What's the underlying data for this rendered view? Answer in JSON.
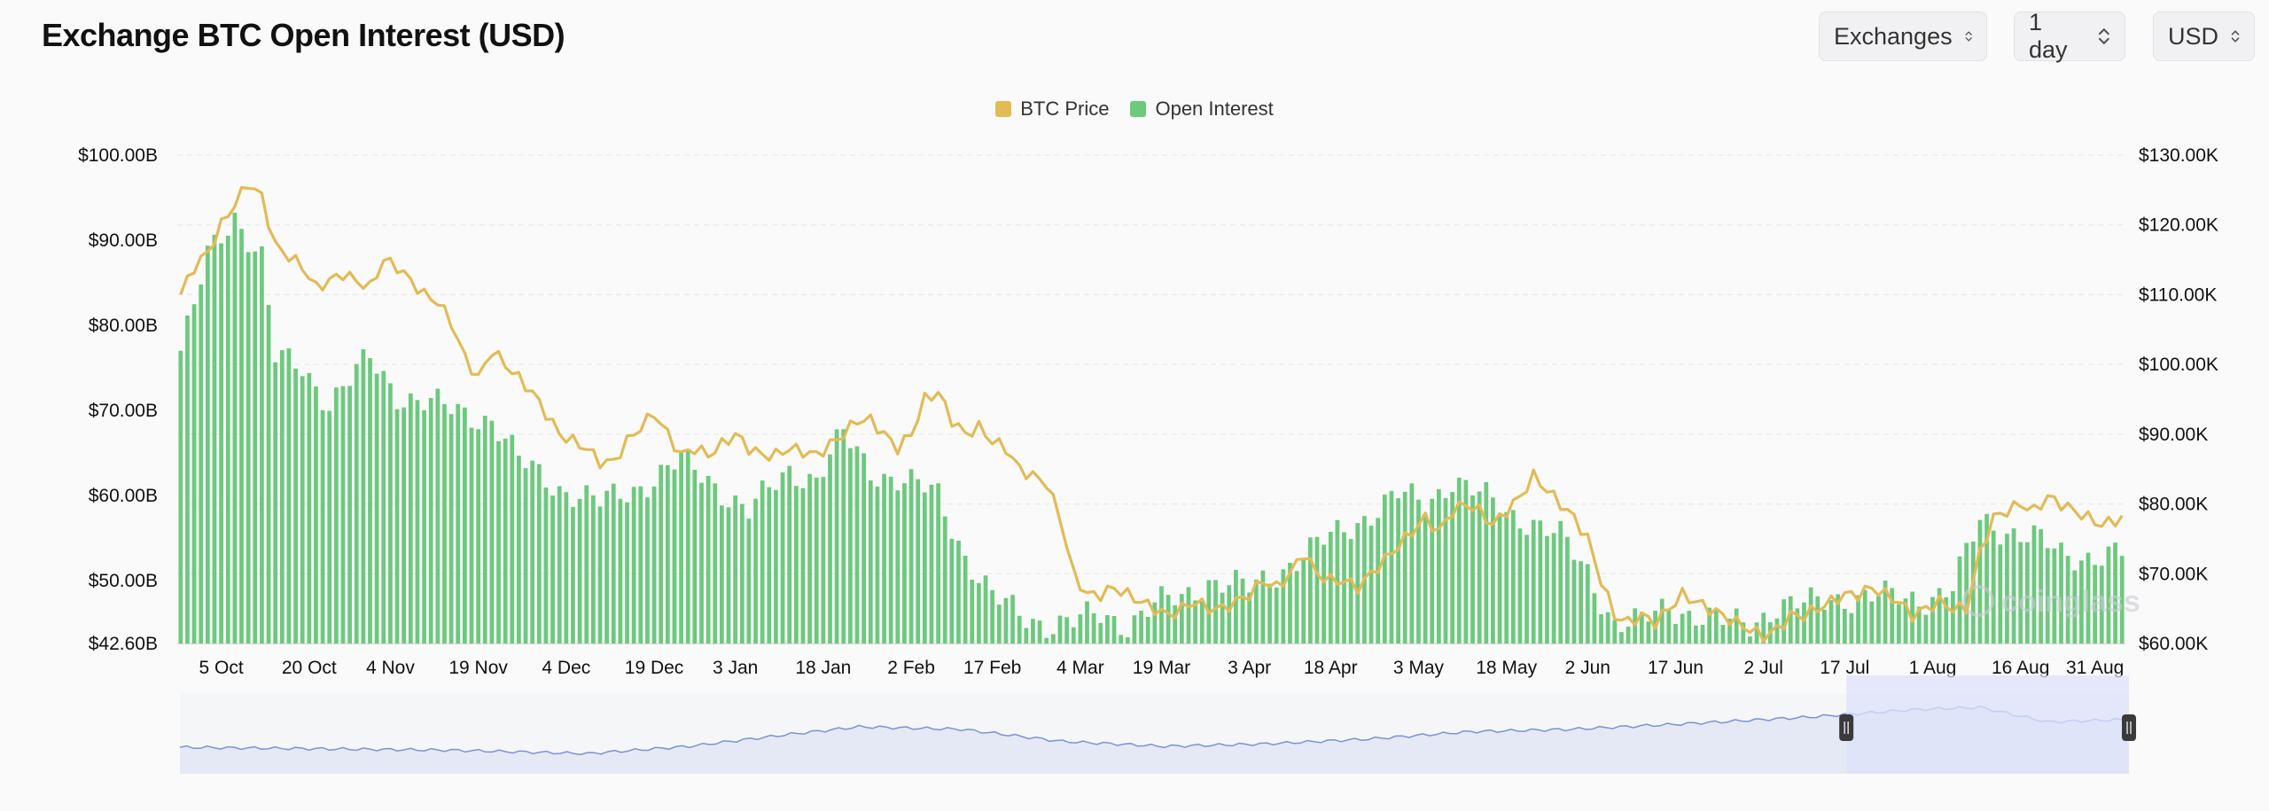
{
  "header": {
    "title": "Exchange BTC Open Interest (USD)",
    "exchanges_label": "Exchanges",
    "interval_label": "1 day",
    "currency_label": "USD"
  },
  "colors": {
    "price": "#e2bb57",
    "open_interest": "#6cc97d",
    "navigator_fill": "#e4e9f5",
    "navigator_line": "#7a93d6",
    "navigator_selection": "#dde1fa",
    "watermark": "#c9cdd6"
  },
  "watermark": {
    "text": "coinglass"
  },
  "chart_data": {
    "type": "bar",
    "title": "Exchange BTC Open Interest (USD)",
    "legend": [
      "BTC Price",
      "Open Interest"
    ],
    "legend_position": "top-center",
    "grid": true,
    "x_tick_labels": [
      "5 Oct",
      "20 Oct",
      "4 Nov",
      "19 Nov",
      "4 Dec",
      "19 Dec",
      "3 Jan",
      "18 Jan",
      "2 Feb",
      "17 Feb",
      "4 Mar",
      "19 Mar",
      "3 Apr",
      "18 Apr",
      "3 May",
      "18 May",
      "2 Jun",
      "17 Jun",
      "2 Jul",
      "17 Jul",
      "1 Aug",
      "16 Aug",
      "31 Aug"
    ],
    "y_left": {
      "label": "",
      "min": 42.6,
      "max": 100,
      "unit": "B USD",
      "tick_labels": [
        "$100.00B",
        "$90.00B",
        "$80.00B",
        "$70.00B",
        "$60.00B",
        "$50.00B",
        "$42.60B"
      ],
      "tick_values": [
        100,
        90,
        80,
        70,
        60,
        50,
        42.6
      ]
    },
    "y_right": {
      "label": "",
      "min": 60,
      "max": 130,
      "unit": "K USD",
      "tick_labels": [
        "$130.00K",
        "$120.00K",
        "$110.00K",
        "$100.00K",
        "$90.00K",
        "$80.00K",
        "$70.00K",
        "$60.00K"
      ],
      "tick_values": [
        130,
        120,
        110,
        100,
        90,
        80,
        70,
        60
      ]
    },
    "series": [
      {
        "name": "Open Interest",
        "axis": "left",
        "type": "bar",
        "keypoints": [
          [
            0,
            77
          ],
          [
            2,
            82
          ],
          [
            4,
            88
          ],
          [
            8,
            93
          ],
          [
            12,
            88
          ],
          [
            14,
            76
          ],
          [
            18,
            75
          ],
          [
            22,
            71
          ],
          [
            28,
            76
          ],
          [
            32,
            72
          ],
          [
            40,
            70
          ],
          [
            46,
            69
          ],
          [
            50,
            64
          ],
          [
            56,
            61
          ],
          [
            62,
            59
          ],
          [
            70,
            62
          ],
          [
            74,
            64
          ],
          [
            78,
            62
          ],
          [
            84,
            58
          ],
          [
            90,
            63
          ],
          [
            94,
            62
          ],
          [
            98,
            67
          ],
          [
            102,
            63
          ],
          [
            106,
            62
          ],
          [
            112,
            60
          ],
          [
            116,
            53
          ],
          [
            120,
            48
          ],
          [
            124,
            46
          ],
          [
            128,
            45
          ],
          [
            132,
            45
          ],
          [
            136,
            46
          ],
          [
            140,
            45
          ],
          [
            144,
            47
          ],
          [
            148,
            48
          ],
          [
            152,
            50
          ],
          [
            158,
            49
          ],
          [
            164,
            52
          ],
          [
            170,
            55
          ],
          [
            176,
            58
          ],
          [
            180,
            60
          ],
          [
            184,
            59
          ],
          [
            188,
            62
          ],
          [
            192,
            60
          ],
          [
            196,
            58
          ],
          [
            200,
            57
          ],
          [
            204,
            55
          ],
          [
            208,
            51
          ],
          [
            212,
            45
          ],
          [
            216,
            45
          ],
          [
            220,
            47
          ],
          [
            224,
            46
          ],
          [
            228,
            45
          ],
          [
            232,
            45
          ],
          [
            236,
            47
          ],
          [
            240,
            47
          ],
          [
            244,
            48
          ],
          [
            248,
            48
          ],
          [
            254,
            48
          ],
          [
            258,
            48
          ],
          [
            262,
            49
          ],
          [
            266,
            57
          ],
          [
            270,
            56
          ],
          [
            274,
            55
          ],
          [
            278,
            53
          ],
          [
            282,
            53
          ],
          [
            287,
            53
          ]
        ]
      },
      {
        "name": "BTC Price",
        "axis": "right",
        "type": "line",
        "keypoints": [
          [
            0,
            110
          ],
          [
            2,
            114
          ],
          [
            4,
            116
          ],
          [
            6,
            120
          ],
          [
            8,
            123
          ],
          [
            10,
            126
          ],
          [
            12,
            124
          ],
          [
            14,
            117
          ],
          [
            18,
            114
          ],
          [
            20,
            111
          ],
          [
            24,
            113
          ],
          [
            26,
            112
          ],
          [
            28,
            111
          ],
          [
            30,
            115
          ],
          [
            32,
            114
          ],
          [
            34,
            112
          ],
          [
            36,
            110
          ],
          [
            38,
            109
          ],
          [
            40,
            106
          ],
          [
            42,
            101
          ],
          [
            44,
            98
          ],
          [
            46,
            102
          ],
          [
            48,
            100
          ],
          [
            52,
            96
          ],
          [
            56,
            90
          ],
          [
            60,
            88
          ],
          [
            62,
            86
          ],
          [
            64,
            86
          ],
          [
            66,
            89
          ],
          [
            68,
            91
          ],
          [
            70,
            93
          ],
          [
            72,
            90
          ],
          [
            74,
            87
          ],
          [
            76,
            88
          ],
          [
            78,
            87
          ],
          [
            82,
            90
          ],
          [
            84,
            88
          ],
          [
            86,
            87
          ],
          [
            88,
            87
          ],
          [
            90,
            88
          ],
          [
            94,
            87
          ],
          [
            98,
            90
          ],
          [
            100,
            92
          ],
          [
            102,
            92
          ],
          [
            104,
            90
          ],
          [
            106,
            88
          ],
          [
            108,
            90
          ],
          [
            110,
            95
          ],
          [
            112,
            96
          ],
          [
            114,
            92
          ],
          [
            116,
            90
          ],
          [
            118,
            91
          ],
          [
            120,
            89
          ],
          [
            122,
            88
          ],
          [
            124,
            85
          ],
          [
            126,
            84
          ],
          [
            128,
            83
          ],
          [
            130,
            78
          ],
          [
            132,
            70
          ],
          [
            134,
            67
          ],
          [
            136,
            67
          ],
          [
            138,
            68
          ],
          [
            140,
            67
          ],
          [
            142,
            66
          ],
          [
            144,
            65
          ],
          [
            146,
            64
          ],
          [
            148,
            65
          ],
          [
            150,
            66
          ],
          [
            152,
            65
          ],
          [
            154,
            65
          ],
          [
            156,
            66
          ],
          [
            158,
            67
          ],
          [
            160,
            69
          ],
          [
            162,
            68
          ],
          [
            164,
            70
          ],
          [
            166,
            73
          ],
          [
            168,
            70
          ],
          [
            170,
            69
          ],
          [
            172,
            69
          ],
          [
            174,
            68
          ],
          [
            176,
            70
          ],
          [
            178,
            72
          ],
          [
            180,
            74
          ],
          [
            182,
            76
          ],
          [
            184,
            78
          ],
          [
            186,
            76
          ],
          [
            188,
            79
          ],
          [
            190,
            80
          ],
          [
            192,
            79
          ],
          [
            194,
            77
          ],
          [
            196,
            79
          ],
          [
            198,
            81
          ],
          [
            200,
            84
          ],
          [
            202,
            82
          ],
          [
            204,
            80
          ],
          [
            206,
            78
          ],
          [
            208,
            75
          ],
          [
            210,
            69
          ],
          [
            212,
            64
          ],
          [
            214,
            63
          ],
          [
            216,
            64
          ],
          [
            218,
            63
          ],
          [
            220,
            65
          ],
          [
            222,
            67
          ],
          [
            224,
            66
          ],
          [
            226,
            65
          ],
          [
            228,
            64
          ],
          [
            230,
            63
          ],
          [
            232,
            62
          ],
          [
            234,
            61
          ],
          [
            236,
            62
          ],
          [
            238,
            64
          ],
          [
            240,
            64
          ],
          [
            242,
            65
          ],
          [
            244,
            66
          ],
          [
            246,
            67
          ],
          [
            248,
            67
          ],
          [
            250,
            68
          ],
          [
            252,
            67
          ],
          [
            254,
            66
          ],
          [
            256,
            64
          ],
          [
            258,
            65
          ],
          [
            260,
            66
          ],
          [
            262,
            65
          ],
          [
            264,
            65
          ],
          [
            266,
            73
          ],
          [
            268,
            78
          ],
          [
            270,
            79
          ],
          [
            272,
            80
          ],
          [
            274,
            79
          ],
          [
            276,
            81
          ],
          [
            278,
            80
          ],
          [
            280,
            79
          ],
          [
            282,
            78
          ],
          [
            284,
            77
          ],
          [
            287,
            78
          ]
        ]
      }
    ],
    "bar_count": 288,
    "x_tick_bar_index": [
      6,
      19,
      31,
      44,
      57,
      70,
      82,
      95,
      108,
      120,
      133,
      145,
      158,
      170,
      183,
      196,
      208,
      221,
      234,
      246,
      259,
      272,
      283
    ],
    "navigator": {
      "selection_fraction": [
        0.855,
        1.0
      ],
      "keypoints": [
        [
          0,
          0.18
        ],
        [
          20,
          0.15
        ],
        [
          40,
          0.12
        ],
        [
          60,
          0.05
        ],
        [
          75,
          0.2
        ],
        [
          90,
          0.45
        ],
        [
          100,
          0.6
        ],
        [
          115,
          0.55
        ],
        [
          130,
          0.3
        ],
        [
          145,
          0.2
        ],
        [
          160,
          0.25
        ],
        [
          175,
          0.35
        ],
        [
          190,
          0.5
        ],
        [
          205,
          0.55
        ],
        [
          220,
          0.65
        ],
        [
          240,
          0.8
        ],
        [
          255,
          0.95
        ],
        [
          265,
          1.0
        ],
        [
          275,
          0.7
        ],
        [
          287,
          0.75
        ]
      ]
    }
  }
}
